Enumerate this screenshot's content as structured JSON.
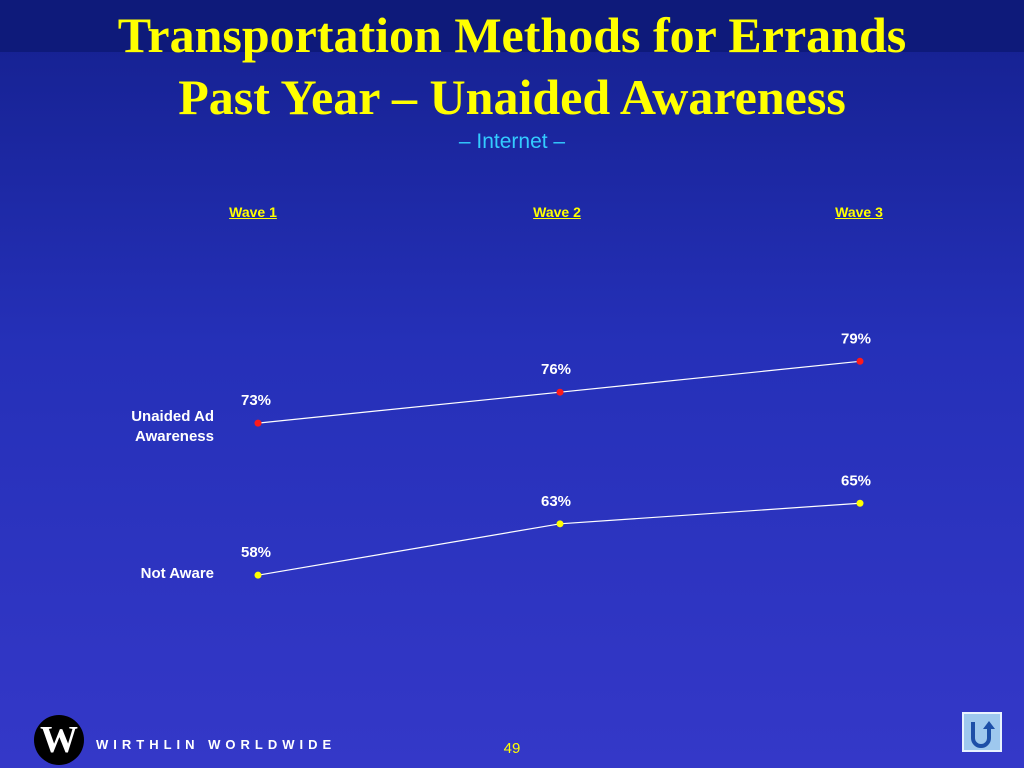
{
  "slide": {
    "title_line1": "Transportation Methods for Errands",
    "title_line2": "Past Year – Unaided Awareness",
    "subtitle": "– Internet –",
    "brand": "WIRTHLIN WORLDWIDE",
    "logo_letter": "W",
    "page_number": "49",
    "nav_icon": "u-turn-arrow-icon"
  },
  "chart_data": {
    "type": "line",
    "categories": [
      "Wave 1",
      "Wave 2",
      "Wave 3"
    ],
    "series": [
      {
        "name": "Unaided Ad Awareness",
        "values": [
          73,
          76,
          79
        ],
        "labels": [
          "73%",
          "76%",
          "79%"
        ],
        "marker_color": "#ff1a1a"
      },
      {
        "name": "Not Aware",
        "values": [
          58,
          63,
          65
        ],
        "labels": [
          "58%",
          "63%",
          "65%"
        ],
        "marker_color": "#ffff00"
      }
    ],
    "line_color": "#ffffff",
    "grid": false,
    "legend": "left row labels"
  }
}
